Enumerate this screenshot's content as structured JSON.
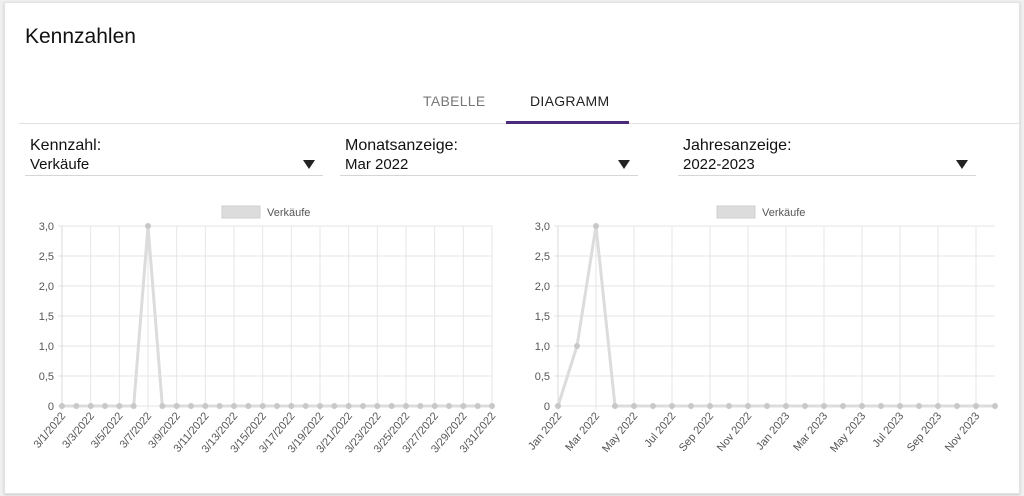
{
  "header": {
    "title": "Kennzahlen"
  },
  "tabs": [
    {
      "label": "TABELLE"
    },
    {
      "label": "DIAGRAMM"
    }
  ],
  "filters": {
    "kennzahl": {
      "label": "Kennzahl:",
      "value": "Verkäufe"
    },
    "monat": {
      "label": "Monatsanzeige:",
      "value": "Mar 2022"
    },
    "jahr": {
      "label": "Jahresanzeige:",
      "value": "2022-2023"
    }
  },
  "colors": {
    "line": "#dcdcdc",
    "point": "#c8c8c8",
    "grid": "#e6e6e6",
    "tab_indicator": "#4a2a7a"
  },
  "chart_data": [
    {
      "type": "line",
      "legend": "top-center",
      "x": [
        "3/1/2022",
        "3/2/2022",
        "3/3/2022",
        "3/4/2022",
        "3/5/2022",
        "3/6/2022",
        "3/7/2022",
        "3/8/2022",
        "3/9/2022",
        "3/10/2022",
        "3/11/2022",
        "3/12/2022",
        "3/13/2022",
        "3/14/2022",
        "3/15/2022",
        "3/16/2022",
        "3/17/2022",
        "3/18/2022",
        "3/19/2022",
        "3/20/2022",
        "3/21/2022",
        "3/22/2022",
        "3/23/2022",
        "3/24/2022",
        "3/25/2022",
        "3/26/2022",
        "3/27/2022",
        "3/28/2022",
        "3/29/2022",
        "3/30/2022",
        "3/31/2022"
      ],
      "tick_labels": [
        "3/1/2022",
        "3/3/2022",
        "3/5/2022",
        "3/7/2022",
        "3/9/2022",
        "3/11/2022",
        "3/13/2022",
        "3/15/2022",
        "3/17/2022",
        "3/19/2022",
        "3/21/2022",
        "3/23/2022",
        "3/25/2022",
        "3/27/2022",
        "3/29/2022",
        "3/31/2022"
      ],
      "series": [
        {
          "name": "Verkäufe",
          "values": [
            0,
            0,
            0,
            0,
            0,
            0,
            3,
            0,
            0,
            0,
            0,
            0,
            0,
            0,
            0,
            0,
            0,
            0,
            0,
            0,
            0,
            0,
            0,
            0,
            0,
            0,
            0,
            0,
            0,
            0,
            0
          ]
        }
      ],
      "ylim": [
        0,
        3
      ],
      "yticks": [
        "0",
        "0,5",
        "1,0",
        "1,5",
        "2,0",
        "2,5",
        "3,0"
      ],
      "grid": true
    },
    {
      "type": "line",
      "legend": "top-center",
      "x": [
        "Jan 2022",
        "Feb 2022",
        "Mar 2022",
        "Apr 2022",
        "May 2022",
        "Jun 2022",
        "Jul 2022",
        "Aug 2022",
        "Sep 2022",
        "Oct 2022",
        "Nov 2022",
        "Dec 2022",
        "Jan 2023",
        "Feb 2023",
        "Mar 2023",
        "Apr 2023",
        "May 2023",
        "Jun 2023",
        "Jul 2023",
        "Aug 2023",
        "Sep 2023",
        "Oct 2023",
        "Nov 2023",
        "Dec 2023"
      ],
      "tick_labels": [
        "Jan 2022",
        "Mar 2022",
        "May 2022",
        "Jul 2022",
        "Sep 2022",
        "Nov 2022",
        "Jan 2023",
        "Mar 2023",
        "May 2023",
        "Jul 2023",
        "Sep 2023",
        "Nov 2023"
      ],
      "series": [
        {
          "name": "Verkäufe",
          "values": [
            0,
            1,
            3,
            0,
            0,
            0,
            0,
            0,
            0,
            0,
            0,
            0,
            0,
            0,
            0,
            0,
            0,
            0,
            0,
            0,
            0,
            0,
            0,
            0
          ]
        }
      ],
      "ylim": [
        0,
        3
      ],
      "yticks": [
        "0",
        "0,5",
        "1,0",
        "1,5",
        "2,0",
        "2,5",
        "3,0"
      ],
      "grid": true
    }
  ]
}
